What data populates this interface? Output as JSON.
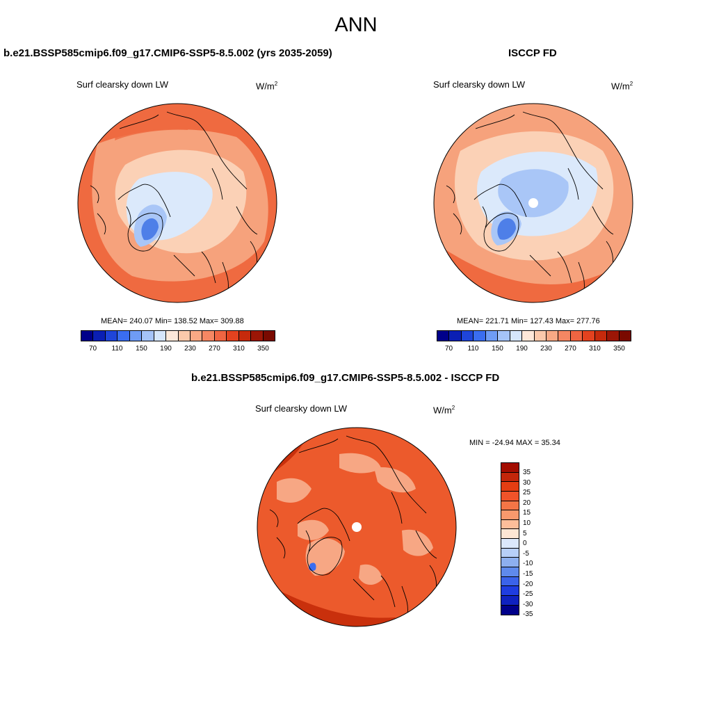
{
  "figure": {
    "title": "ANN"
  },
  "panels": [
    {
      "title": "b.e21.BSSP585cmip6.f09_g17.CMIP6-SSP5-8.5.002 (yrs 2035-2059)",
      "variable": "Surf clearsky down LW",
      "units_base": "W/m",
      "units_sup": "2",
      "stats": "MEAN= 240.07  Min= 138.52  Max= 309.88"
    },
    {
      "title": "ISCCP FD",
      "variable": "Surf clearsky down LW",
      "units_base": "W/m",
      "units_sup": "2",
      "stats": "MEAN= 221.71  Min= 127.43  Max= 277.76"
    },
    {
      "title": "b.e21.BSSP585cmip6.f09_g17.CMIP6-SSP5-8.5.002 - ISCCP FD",
      "variable": "Surf clearsky down LW",
      "units_base": "W/m",
      "units_sup": "2",
      "stats": "MIN = -24.94 MAX =  35.34"
    }
  ],
  "colorbar_abs": {
    "colors": [
      "#00008a",
      "#0a1fb4",
      "#1f45d9",
      "#3a6df0",
      "#6f9cf5",
      "#a5c3f8",
      "#d6e6fb",
      "#fde8d9",
      "#fbc9ab",
      "#f8a985",
      "#f58763",
      "#f06542",
      "#e4421f",
      "#c62a0c",
      "#9c1606",
      "#7a0a00"
    ],
    "tick_labels": [
      "70",
      "110",
      "150",
      "190",
      "230",
      "270",
      "310",
      "350"
    ]
  },
  "colorbar_diff": {
    "colors": [
      "#a30d00",
      "#c3260a",
      "#e43d12",
      "#f0532a",
      "#f47546",
      "#f8996d",
      "#fcbe9a",
      "#fde6d4",
      "#dbe8fb",
      "#b7cff8",
      "#8dafef",
      "#5f8aec",
      "#3b63ea",
      "#1f3de0",
      "#0f22c0",
      "#00008a"
    ],
    "tick_labels": [
      "35",
      "30",
      "25",
      "20",
      "15",
      "10",
      "5",
      "0",
      "-5",
      "-10",
      "-15",
      "-20",
      "-25",
      "-30",
      "-35"
    ]
  },
  "map_colors": {
    "warm_outer": "#ef6a40",
    "warm_mid": "#f6a27c",
    "warm_light": "#fbd1b6",
    "cold_light": "#dbe9fb",
    "cold_mid": "#a9c6f7",
    "cold_deep": "#4e7fe8",
    "diff_base": "#ec5a2c",
    "diff_light": "#f7a784",
    "diff_dark": "#c9300c"
  }
}
